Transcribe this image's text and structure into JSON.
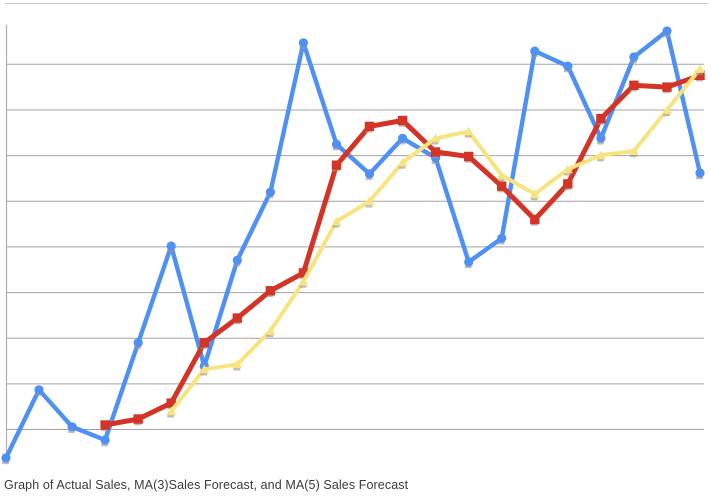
{
  "caption": {
    "text": "Graph of Actual Sales, MA(3)Sales Forecast, and MA(5) Sales Forecast"
  },
  "chart_data": {
    "type": "line",
    "title": "Graph of Actual Sales, MA(3)Sales Forecast, and MA(5) Sales Forecast",
    "xlabel": "",
    "ylabel": "",
    "x": [
      1,
      2,
      3,
      4,
      5,
      6,
      7,
      8,
      9,
      10,
      11,
      12,
      13,
      14,
      15,
      16,
      17,
      18,
      19,
      20,
      21,
      22
    ],
    "x_axis_labels_visible": false,
    "y_axis_labels_visible": false,
    "legend_position": "none",
    "grid": "horizontal",
    "gridlines_y": [
      1,
      2,
      3,
      4,
      5,
      6,
      7,
      8,
      9
    ],
    "ylim": [
      0,
      10.35
    ],
    "value_units": "gridline units (axis tick labels are not visible in the image; 1 unit = spacing between adjacent horizontal gridlines)",
    "series": [
      {
        "name": "Actual Sales",
        "color": "#4e90f3",
        "marker": "circle",
        "line_width": 4.4,
        "values": [
          0.38,
          1.87,
          1.06,
          0.77,
          2.9,
          5.02,
          2.39,
          4.71,
          6.2,
          9.47,
          7.25,
          6.6,
          7.38,
          6.95,
          4.67,
          5.19,
          9.29,
          8.96,
          7.38,
          9.16,
          9.73,
          6.62
        ]
      },
      {
        "name": "MA(3) Sales Forecast",
        "color": "#d33426",
        "marker": "square",
        "line_width": 5,
        "values": [
          null,
          null,
          null,
          1.1,
          1.23,
          1.58,
          2.9,
          3.44,
          4.04,
          4.43,
          6.79,
          7.64,
          7.77,
          7.08,
          6.98,
          6.33,
          5.6,
          6.38,
          7.81,
          8.54,
          8.5,
          8.76
        ]
      },
      {
        "name": "MA(5) Sales Forecast",
        "color": "#f7e47f",
        "marker": "triangle",
        "line_width": 4,
        "values": [
          null,
          null,
          null,
          null,
          null,
          1.4,
          2.32,
          2.43,
          3.16,
          4.24,
          5.56,
          6.0,
          6.85,
          7.38,
          7.53,
          6.57,
          6.16,
          6.7,
          7.01,
          7.1,
          8.0,
          8.9
        ]
      }
    ],
    "style": {
      "gridline_color": "#a3a3a3",
      "axis_line_color": "#aeaeae",
      "page_border_color": "#cccccc",
      "marker_shadow_color": "#9a9a9a",
      "background": "#ffffff"
    }
  }
}
